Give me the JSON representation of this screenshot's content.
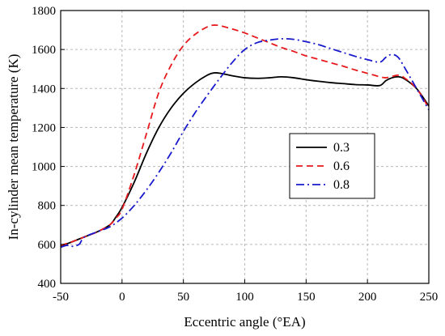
{
  "chart_data": {
    "type": "line",
    "title": "",
    "xlabel": "Eccentric angle (°EA)",
    "ylabel": "In-cylinder mean temperature (K)",
    "xlim": [
      -50,
      250
    ],
    "ylim": [
      400,
      1800
    ],
    "xticks": [
      -50,
      0,
      50,
      100,
      150,
      200,
      250
    ],
    "yticks": [
      400,
      600,
      800,
      1000,
      1200,
      1400,
      1600,
      1800
    ],
    "grid": true,
    "legend_position": "center-right",
    "series": [
      {
        "name": "0.3",
        "color": "#000000",
        "dash": "solid",
        "x": [
          -50,
          -40,
          -30,
          -20,
          -10,
          -5,
          0,
          10,
          20,
          30,
          40,
          50,
          60,
          70,
          75,
          80,
          90,
          100,
          110,
          120,
          130,
          140,
          150,
          160,
          170,
          180,
          190,
          200,
          210,
          215,
          220,
          225,
          230,
          240,
          250
        ],
        "y": [
          590,
          615,
          640,
          665,
          700,
          740,
          790,
          920,
          1070,
          1200,
          1300,
          1375,
          1430,
          1470,
          1480,
          1478,
          1465,
          1455,
          1452,
          1455,
          1460,
          1455,
          1445,
          1437,
          1430,
          1425,
          1420,
          1418,
          1415,
          1440,
          1455,
          1460,
          1450,
          1400,
          1310
        ]
      },
      {
        "name": "0.6",
        "color": "#e8191c",
        "dash": "dashed",
        "x": [
          -50,
          -40,
          -30,
          -20,
          -10,
          -5,
          0,
          10,
          20,
          30,
          40,
          50,
          60,
          70,
          75,
          80,
          90,
          100,
          110,
          120,
          130,
          140,
          150,
          160,
          170,
          180,
          190,
          200,
          210,
          215,
          220,
          225,
          230,
          240,
          250
        ],
        "y": [
          595,
          615,
          640,
          665,
          700,
          735,
          780,
          960,
          1170,
          1380,
          1520,
          1620,
          1680,
          1718,
          1725,
          1722,
          1705,
          1685,
          1660,
          1635,
          1610,
          1590,
          1567,
          1550,
          1532,
          1515,
          1495,
          1478,
          1460,
          1455,
          1462,
          1468,
          1455,
          1400,
          1300
        ]
      },
      {
        "name": "0.8",
        "color": "#1a1acd",
        "dash": "dashdot",
        "x": [
          -50,
          -45,
          -40,
          -35,
          -33,
          -30,
          -20,
          -10,
          0,
          10,
          20,
          30,
          40,
          50,
          60,
          70,
          80,
          90,
          100,
          110,
          120,
          130,
          140,
          150,
          160,
          170,
          180,
          190,
          200,
          210,
          215,
          220,
          225,
          230,
          240,
          250
        ],
        "y": [
          585,
          595,
          590,
          600,
          620,
          640,
          665,
          690,
          735,
          800,
          880,
          970,
          1070,
          1180,
          1280,
          1370,
          1455,
          1535,
          1600,
          1635,
          1648,
          1655,
          1652,
          1640,
          1625,
          1605,
          1585,
          1565,
          1548,
          1535,
          1560,
          1575,
          1560,
          1510,
          1400,
          1290
        ]
      }
    ]
  }
}
